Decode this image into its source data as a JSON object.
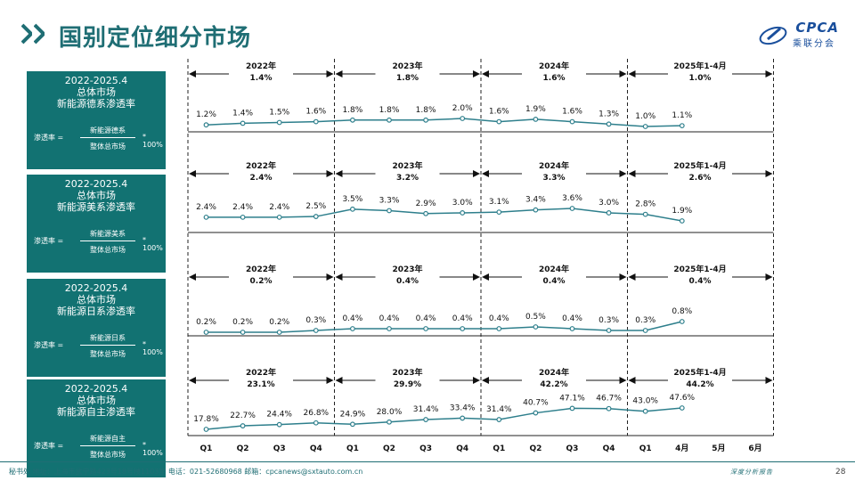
{
  "header": {
    "title": "国别定位细分市场"
  },
  "logo": {
    "top": "CPCA",
    "bottom": "乘联分会"
  },
  "colors": {
    "teal": "#127272",
    "line": "#2e7f8c",
    "title": "#1f6e74"
  },
  "cards": [
    {
      "l1": "2022-2025.4",
      "l2": "总体市场",
      "l3": "新能源德系渗透率",
      "f_label": "渗透率 =",
      "f_num": "新能源德系",
      "f_den": "整体总市场",
      "f_mult": "* 100%"
    },
    {
      "l1": "2022-2025.4",
      "l2": "总体市场",
      "l3": "新能源美系渗透率",
      "f_label": "渗透率 =",
      "f_num": "新能源美系",
      "f_den": "整体总市场",
      "f_mult": "* 100%"
    },
    {
      "l1": "2022-2025.4",
      "l2": "总体市场",
      "l3": "新能源日系渗透率",
      "f_label": "渗透率 =",
      "f_num": "新能源日系",
      "f_den": "整体总市场",
      "f_mult": "* 100%"
    },
    {
      "l1": "2022-2025.4",
      "l2": "总体市场",
      "l3": "新能源自主渗透率",
      "f_label": "渗透率 =",
      "f_num": "新能源自主",
      "f_den": "整体总市场",
      "f_mult": "* 100%"
    }
  ],
  "chart_data": {
    "type": "line",
    "categories": [
      "Q1",
      "Q2",
      "Q3",
      "Q4",
      "Q1",
      "Q2",
      "Q3",
      "Q4",
      "Q1",
      "Q2",
      "Q3",
      "Q4",
      "Q1",
      "4月",
      "5月",
      "6月"
    ],
    "panels": [
      {
        "values": [
          1.2,
          1.4,
          1.5,
          1.6,
          1.8,
          1.8,
          1.8,
          2.0,
          1.6,
          1.9,
          1.6,
          1.3,
          1.0,
          1.1
        ],
        "labels": [
          "1.2%",
          "1.4%",
          "1.5%",
          "1.6%",
          "1.8%",
          "1.8%",
          "1.8%",
          "2.0%",
          "1.6%",
          "1.9%",
          "1.6%",
          "1.3%",
          "1.0%",
          "1.1%"
        ],
        "periods": [
          {
            "label": "2022年",
            "value": "1.4%"
          },
          {
            "label": "2023年",
            "value": "1.8%"
          },
          {
            "label": "2024年",
            "value": "1.6%"
          },
          {
            "label": "2025年1-4月",
            "value": "1.0%"
          }
        ]
      },
      {
        "values": [
          2.4,
          2.4,
          2.4,
          2.5,
          3.5,
          3.3,
          2.9,
          3.0,
          3.1,
          3.4,
          3.6,
          3.0,
          2.8,
          1.9
        ],
        "labels": [
          "2.4%",
          "2.4%",
          "2.4%",
          "2.5%",
          "3.5%",
          "3.3%",
          "2.9%",
          "3.0%",
          "3.1%",
          "3.4%",
          "3.6%",
          "3.0%",
          "2.8%",
          "1.9%"
        ],
        "periods": [
          {
            "label": "2022年",
            "value": "2.4%"
          },
          {
            "label": "2023年",
            "value": "3.2%"
          },
          {
            "label": "2024年",
            "value": "3.3%"
          },
          {
            "label": "2025年1-4月",
            "value": "2.6%"
          }
        ]
      },
      {
        "values": [
          0.2,
          0.2,
          0.2,
          0.3,
          0.4,
          0.4,
          0.4,
          0.4,
          0.4,
          0.5,
          0.4,
          0.3,
          0.3,
          0.8
        ],
        "labels": [
          "0.2%",
          "0.2%",
          "0.2%",
          "0.3%",
          "0.4%",
          "0.4%",
          "0.4%",
          "0.4%",
          "0.4%",
          "0.5%",
          "0.4%",
          "0.3%",
          "0.3%",
          "0.8%"
        ],
        "periods": [
          {
            "label": "2022年",
            "value": "0.2%"
          },
          {
            "label": "2023年",
            "value": "0.4%"
          },
          {
            "label": "2024年",
            "value": "0.4%"
          },
          {
            "label": "2025年1-4月",
            "value": "0.4%"
          }
        ]
      },
      {
        "values": [
          17.8,
          22.7,
          24.4,
          26.8,
          24.9,
          28.0,
          31.4,
          33.4,
          31.4,
          40.7,
          47.1,
          46.7,
          43.0,
          47.6
        ],
        "labels": [
          "17.8%",
          "22.7%",
          "24.4%",
          "26.8%",
          "24.9%",
          "28.0%",
          "31.4%",
          "33.4%",
          "31.4%",
          "40.7%",
          "47.1%",
          "46.7%",
          "43.0%",
          "47.6%"
        ],
        "periods": [
          {
            "label": "2022年",
            "value": "23.1%"
          },
          {
            "label": "2023年",
            "value": "29.9%"
          },
          {
            "label": "2024年",
            "value": "42.2%"
          },
          {
            "label": "2025年1-4月",
            "value": "44.2%"
          }
        ]
      }
    ]
  },
  "footer": {
    "address": "秘书处  地址：上海市武宁路423号18号楼1103室  电话：021-52680968  邮箱：cpcanews@sxtauto.com.cn",
    "slogan": "深度分析报告",
    "page": "28"
  }
}
